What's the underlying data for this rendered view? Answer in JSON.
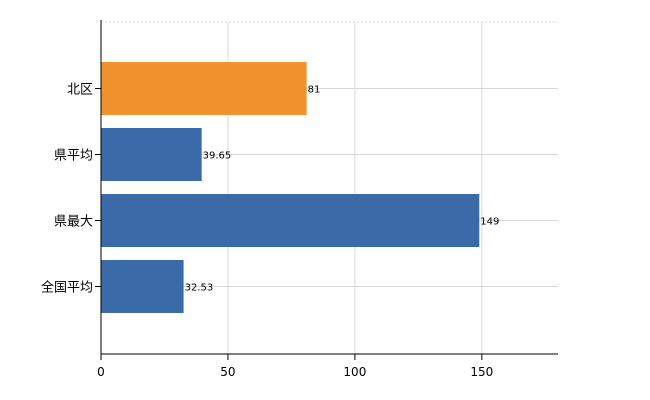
{
  "chart_data": {
    "type": "bar",
    "orientation": "horizontal",
    "categories": [
      "北区",
      "県平均",
      "県最大",
      "全国平均"
    ],
    "values": [
      81,
      39.65,
      149,
      32.53
    ],
    "value_labels": [
      "81",
      "39.65",
      "149",
      "32.53"
    ],
    "bar_colors": [
      "#f0922e",
      "#3b6aa8",
      "#3b6aa8",
      "#3b6aa8"
    ],
    "xlim": [
      0,
      180
    ],
    "x_ticks": [
      0,
      50,
      100,
      150
    ],
    "x_tick_labels": [
      "0",
      "50",
      "100",
      "150"
    ],
    "grid": true,
    "title": "",
    "xlabel": "",
    "ylabel": ""
  }
}
